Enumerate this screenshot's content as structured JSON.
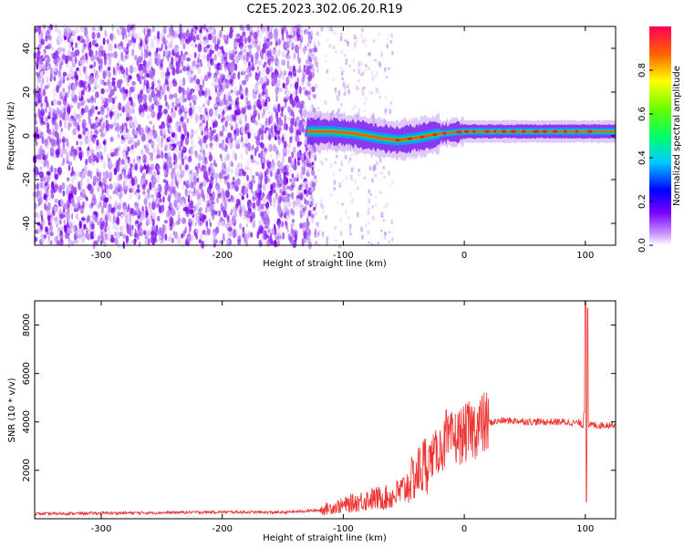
{
  "title": "C2E5.2023.302.06.20.R19",
  "chart_data": [
    {
      "type": "heatmap",
      "name": "spectrogram",
      "xlabel": "Height of straight line (km)",
      "ylabel": "Frequency (Hz)",
      "xlim": [
        -355,
        125
      ],
      "ylim": [
        -50,
        50
      ],
      "xticks": [
        -300,
        -200,
        -100,
        0,
        100
      ],
      "yticks": [
        -40,
        -20,
        0,
        20,
        40
      ],
      "noise_region_x": [
        -355,
        -130
      ],
      "signal_ridge": [
        {
          "x": -130,
          "f": 2
        },
        {
          "x": -110,
          "f": 2
        },
        {
          "x": -90,
          "f": 1
        },
        {
          "x": -70,
          "f": -1
        },
        {
          "x": -55,
          "f": -2
        },
        {
          "x": -40,
          "f": -1
        },
        {
          "x": -20,
          "f": 1
        },
        {
          "x": 0,
          "f": 2
        },
        {
          "x": 50,
          "f": 2
        },
        {
          "x": 100,
          "f": 2
        },
        {
          "x": 125,
          "f": 2
        }
      ],
      "colorbar": {
        "label": "Normalized spectral amplitude",
        "ticks": [
          0.0,
          0.2,
          0.4,
          0.6,
          0.8
        ],
        "range": [
          0,
          1
        ]
      }
    },
    {
      "type": "line",
      "name": "snr",
      "xlabel": "Height of straight line (km)",
      "ylabel": "SNR (10 * v/v)",
      "xlim": [
        -355,
        125
      ],
      "ylim": [
        0,
        9000
      ],
      "xticks": [
        -300,
        -200,
        -100,
        0,
        100
      ],
      "yticks": [
        2000,
        4000,
        6000,
        8000
      ],
      "color": "#ee3333",
      "series": [
        {
          "name": "SNR",
          "x": [
            -355,
            -300,
            -250,
            -200,
            -150,
            -120,
            -100,
            -80,
            -60,
            -50,
            -40,
            -30,
            -20,
            -15,
            -10,
            0,
            10,
            20,
            30,
            40,
            60,
            80,
            95,
            100,
            102,
            105,
            110,
            125
          ],
          "values": [
            200,
            230,
            250,
            280,
            260,
            350,
            550,
            800,
            900,
            1200,
            1800,
            2400,
            2900,
            3100,
            3300,
            3500,
            3800,
            3950,
            4050,
            4050,
            4000,
            4000,
            3950,
            3800,
            3700,
            3900,
            3850,
            3900
          ]
        }
      ],
      "spikes": [
        {
          "x": -15,
          "value": 4500
        },
        {
          "x": 99,
          "value": 4400
        },
        {
          "x": 100,
          "value": 9000
        },
        {
          "x": 102,
          "value": 8700
        },
        {
          "x": 101,
          "value": 700
        }
      ]
    }
  ]
}
